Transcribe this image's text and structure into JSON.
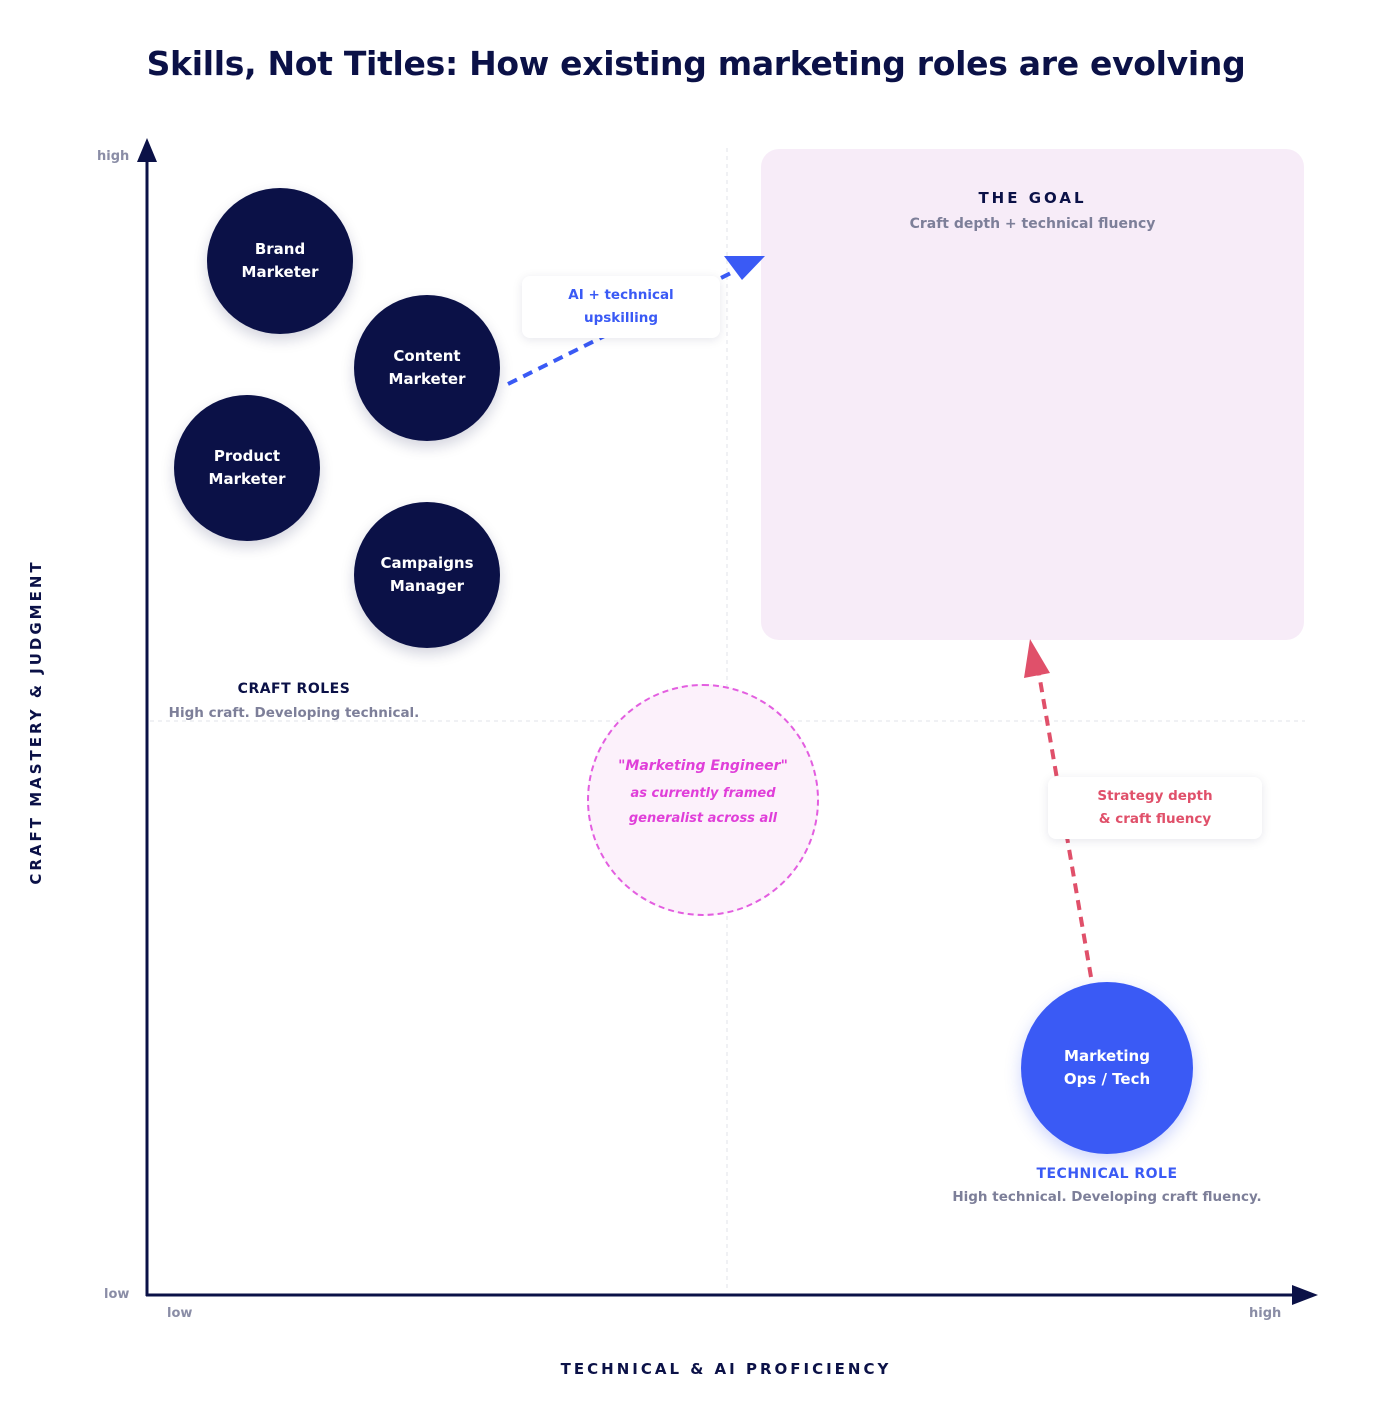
{
  "title": "Skills, Not Titles: How existing marketing roles are evolving",
  "axes": {
    "y_title": "CRAFT MASTERY & JUDGMENT",
    "x_title": "TECHNICAL & AI PROFICIENCY",
    "y_high": "high",
    "y_low": "low",
    "x_low": "low",
    "x_high": "high"
  },
  "goal": {
    "title": "THE GOAL",
    "subtitle": "Craft depth + technical fluency"
  },
  "craft_roles": [
    {
      "label": "Brand\nMarketer"
    },
    {
      "label": "Content\nMarketer"
    },
    {
      "label": "Product\nMarketer"
    },
    {
      "label": "Campaigns\nManager"
    }
  ],
  "craft_group": {
    "title": "CRAFT ROLES",
    "subtitle": "High craft. Developing technical."
  },
  "technical_role": {
    "label": "Marketing\nOps / Tech",
    "title": "TECHNICAL ROLE",
    "subtitle": "High technical. Developing craft fluency."
  },
  "engineer": {
    "quote": "\"Marketing Engineer\"",
    "line1": "as currently framed",
    "line2": "generalist across all"
  },
  "callouts": {
    "upskilling": "AI + technical\nupskilling",
    "strategy": "Strategy depth\n& craft fluency"
  },
  "colors": {
    "navy": "#0b1147",
    "blue": "#3a5af5",
    "pink": "#e03fd9",
    "red": "#e0506a",
    "goal_bg": "#f7ecf8",
    "muted": "#7d7f99"
  }
}
